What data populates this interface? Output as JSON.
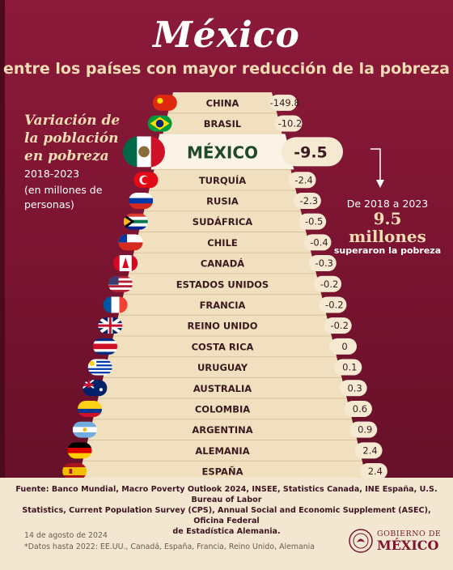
{
  "title": "México",
  "subtitle": "entre los países con mayor reducción de la pobreza",
  "left_panel": {
    "title_lines": [
      "Variación de",
      "la población",
      "en pobreza"
    ],
    "period": "2018-2023",
    "unit_lines": [
      "(en millones de",
      "personas)"
    ]
  },
  "callout": {
    "line1": "De 2018 a 2023",
    "line2": "9.5",
    "line3": "millones",
    "line4": "superaron la pobreza"
  },
  "chart_data": {
    "type": "bar",
    "categories": [
      "CHINA",
      "BRASIL",
      "MÉXICO",
      "TURQUÍA",
      "RUSIA",
      "SUDÁFRICA",
      "CHILE",
      "CANADÁ",
      "ESTADOS UNIDOS",
      "FRANCIA",
      "REINO UNIDO",
      "COSTA RICA",
      "URUGUAY",
      "AUSTRALIA",
      "COLOMBIA",
      "ARGENTINA",
      "ALEMANIA",
      "ESPAÑA"
    ],
    "value_labels": [
      "-149.8",
      "-10.2",
      "-9.5",
      "-2.4",
      "-2.3",
      "-0.5",
      "-0.4",
      "-0.3",
      "-0.2",
      "-0.2",
      "-0.2",
      "0",
      "0.1",
      "0.3",
      "0.6",
      "0.9",
      "2.4",
      "2.4"
    ],
    "values": [
      -149.8,
      -10.2,
      -9.5,
      -2.4,
      -2.3,
      -0.5,
      -0.4,
      -0.3,
      -0.2,
      -0.2,
      -0.2,
      0,
      0.1,
      0.3,
      0.6,
      0.9,
      2.4,
      2.4
    ],
    "highlight": "MÉXICO",
    "xlabel": "",
    "ylabel": ""
  },
  "flags": {
    "CHINA": "china-flag-icon",
    "BRASIL": "brazil-flag-icon",
    "MÉXICO": "mexico-flag-icon",
    "TURQUÍA": "turkey-flag-icon",
    "RUSIA": "russia-flag-icon",
    "SUDÁFRICA": "south-africa-flag-icon",
    "CHILE": "chile-flag-icon",
    "CANADÁ": "canada-flag-icon",
    "ESTADOS UNIDOS": "usa-flag-icon",
    "FRANCIA": "france-flag-icon",
    "REINO UNIDO": "uk-flag-icon",
    "COSTA RICA": "costa-rica-flag-icon",
    "URUGUAY": "uruguay-flag-icon",
    "AUSTRALIA": "australia-flag-icon",
    "COLOMBIA": "colombia-flag-icon",
    "ARGENTINA": "argentina-flag-icon",
    "ALEMANIA": "germany-flag-icon",
    "ESPAÑA": "spain-flag-icon"
  },
  "colors": {
    "background": "#7a1431",
    "pyramid": "#f1e0bf",
    "value_pill": "#f5e9d2",
    "text_dark": "#3a1a1f",
    "accent_gold": "#f1dcb4"
  },
  "footer": {
    "sources_lines": [
      "Fuente: Banco Mundial, Macro Poverty Outlook 2024, INSEE, Statistics Canada, INE España, U.S. Bureau of Labor",
      "Statistics, Current Population Survey (CPS), Annual Social and Economic Supplement (ASEC), Oficina Federal",
      "de Estadística Alemania."
    ],
    "date": "14 de agosto de 2024",
    "note": "*Datos hasta 2022: EE.UU., Canadá, España, Francia, Reino Unido, Alemania",
    "gov_line1": "GOBIERNO DE",
    "gov_line2": "MÉXICO"
  }
}
